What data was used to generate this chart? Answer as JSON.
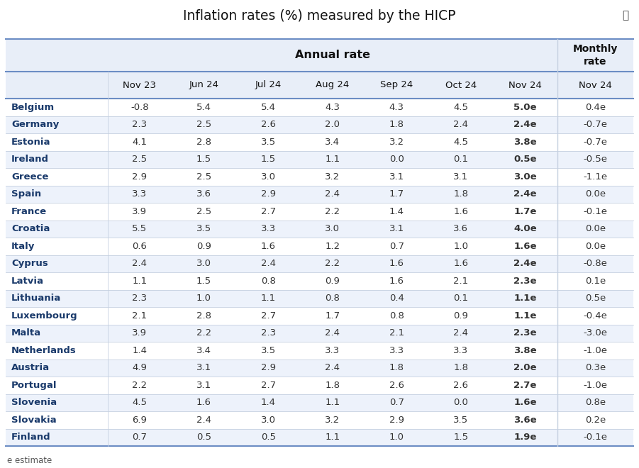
{
  "title": "Inflation rates (%) measured by the HICP",
  "countries": [
    "Belgium",
    "Germany",
    "Estonia",
    "Ireland",
    "Greece",
    "Spain",
    "France",
    "Croatia",
    "Italy",
    "Cyprus",
    "Latvia",
    "Lithuania",
    "Luxembourg",
    "Malta",
    "Netherlands",
    "Austria",
    "Portugal",
    "Slovenia",
    "Slovakia",
    "Finland"
  ],
  "data": [
    [
      "-0.8",
      "5.4",
      "5.4",
      "4.3",
      "4.3",
      "4.5",
      "5.0e",
      "0.4e"
    ],
    [
      "2.3",
      "2.5",
      "2.6",
      "2.0",
      "1.8",
      "2.4",
      "2.4e",
      "-0.7e"
    ],
    [
      "4.1",
      "2.8",
      "3.5",
      "3.4",
      "3.2",
      "4.5",
      "3.8e",
      "-0.7e"
    ],
    [
      "2.5",
      "1.5",
      "1.5",
      "1.1",
      "0.0",
      "0.1",
      "0.5e",
      "-0.5e"
    ],
    [
      "2.9",
      "2.5",
      "3.0",
      "3.2",
      "3.1",
      "3.1",
      "3.0e",
      "-1.1e"
    ],
    [
      "3.3",
      "3.6",
      "2.9",
      "2.4",
      "1.7",
      "1.8",
      "2.4e",
      "0.0e"
    ],
    [
      "3.9",
      "2.5",
      "2.7",
      "2.2",
      "1.4",
      "1.6",
      "1.7e",
      "-0.1e"
    ],
    [
      "5.5",
      "3.5",
      "3.3",
      "3.0",
      "3.1",
      "3.6",
      "4.0e",
      "0.0e"
    ],
    [
      "0.6",
      "0.9",
      "1.6",
      "1.2",
      "0.7",
      "1.0",
      "1.6e",
      "0.0e"
    ],
    [
      "2.4",
      "3.0",
      "2.4",
      "2.2",
      "1.6",
      "1.6",
      "2.4e",
      "-0.8e"
    ],
    [
      "1.1",
      "1.5",
      "0.8",
      "0.9",
      "1.6",
      "2.1",
      "2.3e",
      "0.1e"
    ],
    [
      "2.3",
      "1.0",
      "1.1",
      "0.8",
      "0.4",
      "0.1",
      "1.1e",
      "0.5e"
    ],
    [
      "2.1",
      "2.8",
      "2.7",
      "1.7",
      "0.8",
      "0.9",
      "1.1e",
      "-0.4e"
    ],
    [
      "3.9",
      "2.2",
      "2.3",
      "2.4",
      "2.1",
      "2.4",
      "2.3e",
      "-3.0e"
    ],
    [
      "1.4",
      "3.4",
      "3.5",
      "3.3",
      "3.3",
      "3.3",
      "3.8e",
      "-1.0e"
    ],
    [
      "4.9",
      "3.1",
      "2.9",
      "2.4",
      "1.8",
      "1.8",
      "2.0e",
      "0.3e"
    ],
    [
      "2.2",
      "3.1",
      "2.7",
      "1.8",
      "2.6",
      "2.6",
      "2.7e",
      "-1.0e"
    ],
    [
      "4.5",
      "1.6",
      "1.4",
      "1.1",
      "0.7",
      "0.0",
      "1.6e",
      "0.8e"
    ],
    [
      "6.9",
      "2.4",
      "3.0",
      "3.2",
      "2.9",
      "3.5",
      "3.6e",
      "0.2e"
    ],
    [
      "0.7",
      "0.5",
      "0.5",
      "1.1",
      "1.0",
      "1.5",
      "1.9e",
      "-0.1e"
    ]
  ],
  "col_labels": [
    "Nov 23",
    "Jun 24",
    "Jul 24",
    "Aug 24",
    "Sep 24",
    "Oct 24",
    "Nov 24",
    "Nov 24"
  ],
  "footnote": "e estimate",
  "bg_header": "#e8eef8",
  "bg_odd": "#ffffff",
  "bg_even": "#edf2fb",
  "country_color": "#1a3a6b",
  "data_color": "#333333",
  "header_color": "#111111",
  "border_blue": "#6b8dc4",
  "border_light": "#c5d0e0"
}
